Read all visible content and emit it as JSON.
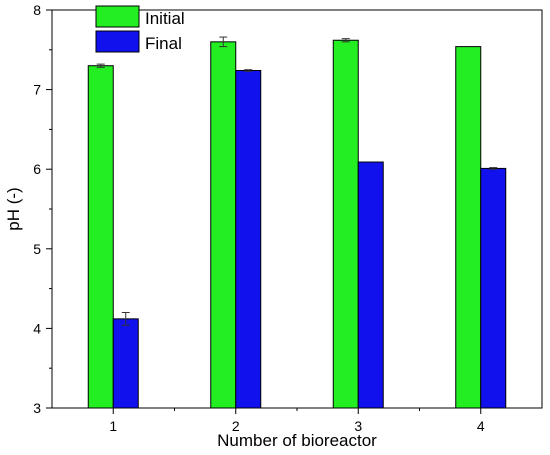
{
  "chart_data": {
    "type": "bar",
    "title": "",
    "xlabel": "Number of bioreactor",
    "ylabel": "pH (-)",
    "categories": [
      "1",
      "2",
      "3",
      "4"
    ],
    "ylim": [
      3,
      8
    ],
    "yticks": [
      3,
      4,
      5,
      6,
      7,
      8
    ],
    "grid": false,
    "legend_position": "top-left",
    "series": [
      {
        "name": "Initial",
        "color": "#22ee22",
        "values": [
          7.3,
          7.6,
          7.62,
          7.54
        ],
        "errors": [
          0.02,
          0.06,
          0.02,
          0.0
        ]
      },
      {
        "name": "Final",
        "color": "#1111ee",
        "values": [
          4.12,
          7.24,
          6.09,
          6.01
        ],
        "errors": [
          0.08,
          0.01,
          0.0,
          0.01
        ]
      }
    ]
  }
}
